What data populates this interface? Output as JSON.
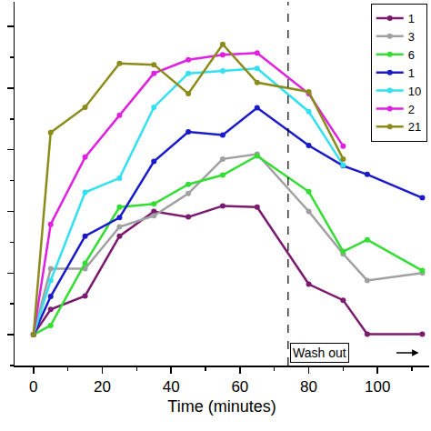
{
  "chart_data": {
    "type": "line",
    "x_label": "Time (minutes)",
    "x": [
      0,
      5,
      15,
      25,
      35,
      45,
      55,
      65,
      80,
      90,
      97,
      113
    ],
    "series": [
      {
        "name": "1",
        "color": "#7b1a6e",
        "values": [
          0,
          0.41,
          0.63,
          1.6,
          2.0,
          1.91,
          2.09,
          2.07,
          0.82,
          0.56,
          0.01,
          0.01
        ]
      },
      {
        "name": "3",
        "color": "#a0a0a0",
        "values": [
          0,
          1.07,
          1.07,
          1.75,
          1.93,
          2.29,
          2.85,
          2.93,
          2.0,
          1.31,
          0.88,
          1.0
        ]
      },
      {
        "name": "6",
        "color": "#33dd33",
        "values": [
          0,
          0.15,
          1.16,
          2.07,
          2.12,
          2.44,
          2.59,
          2.9,
          2.32,
          1.35,
          1.54,
          1.04
        ]
      },
      {
        "name": "1",
        "color": "#1a1acc",
        "values": [
          0,
          0.62,
          1.6,
          1.9,
          2.81,
          3.29,
          3.24,
          3.68,
          3.07,
          2.74,
          2.6,
          2.22
        ]
      },
      {
        "name": "10",
        "color": "#33e0f0",
        "values": [
          0,
          0.88,
          2.31,
          2.54,
          3.69,
          4.24,
          4.28,
          4.32,
          3.62,
          2.75,
          null,
          null
        ]
      },
      {
        "name": "2",
        "color": "#e020e0",
        "values": [
          0,
          1.79,
          2.88,
          3.56,
          4.24,
          4.46,
          4.54,
          4.57,
          3.91,
          3.06,
          null,
          null
        ]
      },
      {
        "name": "21",
        "color": "#8b8b1a",
        "values": [
          0,
          3.28,
          3.69,
          4.4,
          4.38,
          3.91,
          4.71,
          4.09,
          3.94,
          2.85,
          null,
          null
        ]
      }
    ],
    "xlim": [
      -5.5,
      115
    ],
    "xticks": [
      0,
      20,
      40,
      60,
      80,
      100
    ],
    "ylim": [
      -0.5,
      5.4
    ],
    "yticks": [
      0,
      1,
      2,
      3,
      4,
      5
    ],
    "tick_labels": "x",
    "grid": false,
    "legend": "top-right",
    "marker": "circle",
    "annotations": [
      {
        "text": "Wash out",
        "x": 74
      }
    ]
  }
}
